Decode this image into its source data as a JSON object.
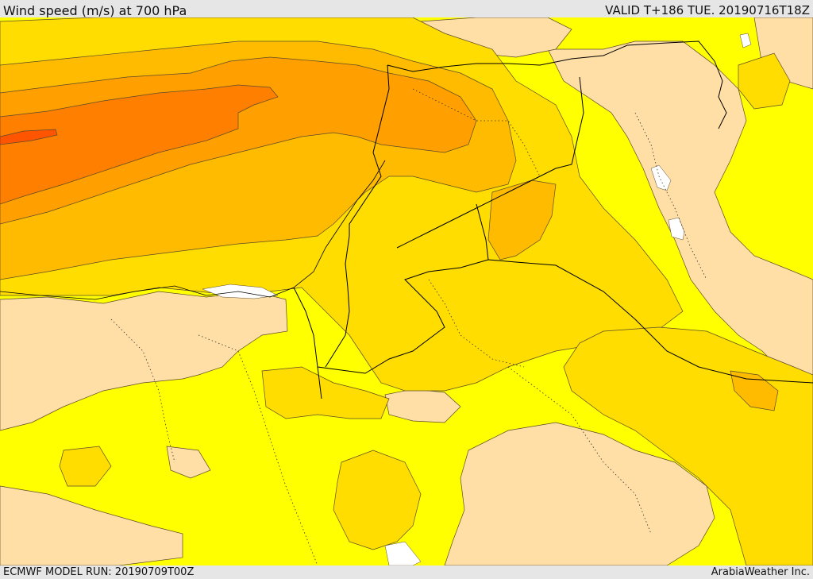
{
  "header": {
    "title": "Wind speed (m/s) at 700 hPa",
    "valid": "VALID T+186 TUE. 20190716T18Z"
  },
  "footer": {
    "model_run": "ECMWF MODEL RUN: 20190709T00Z",
    "credit": "ArabiaWeather Inc."
  },
  "colors": {
    "lt_5": "#ffdfa6",
    "5_10": "#ffff00",
    "10_15": "#ffdd00",
    "15_20": "#ffbb00",
    "20_25": "#ff9f00",
    "25_30": "#ff7f00",
    "gt_30": "#ff5500",
    "water_unresolved": "#ffffff",
    "contour_line": "#5a4a2a",
    "border_line": "#000000"
  }
}
